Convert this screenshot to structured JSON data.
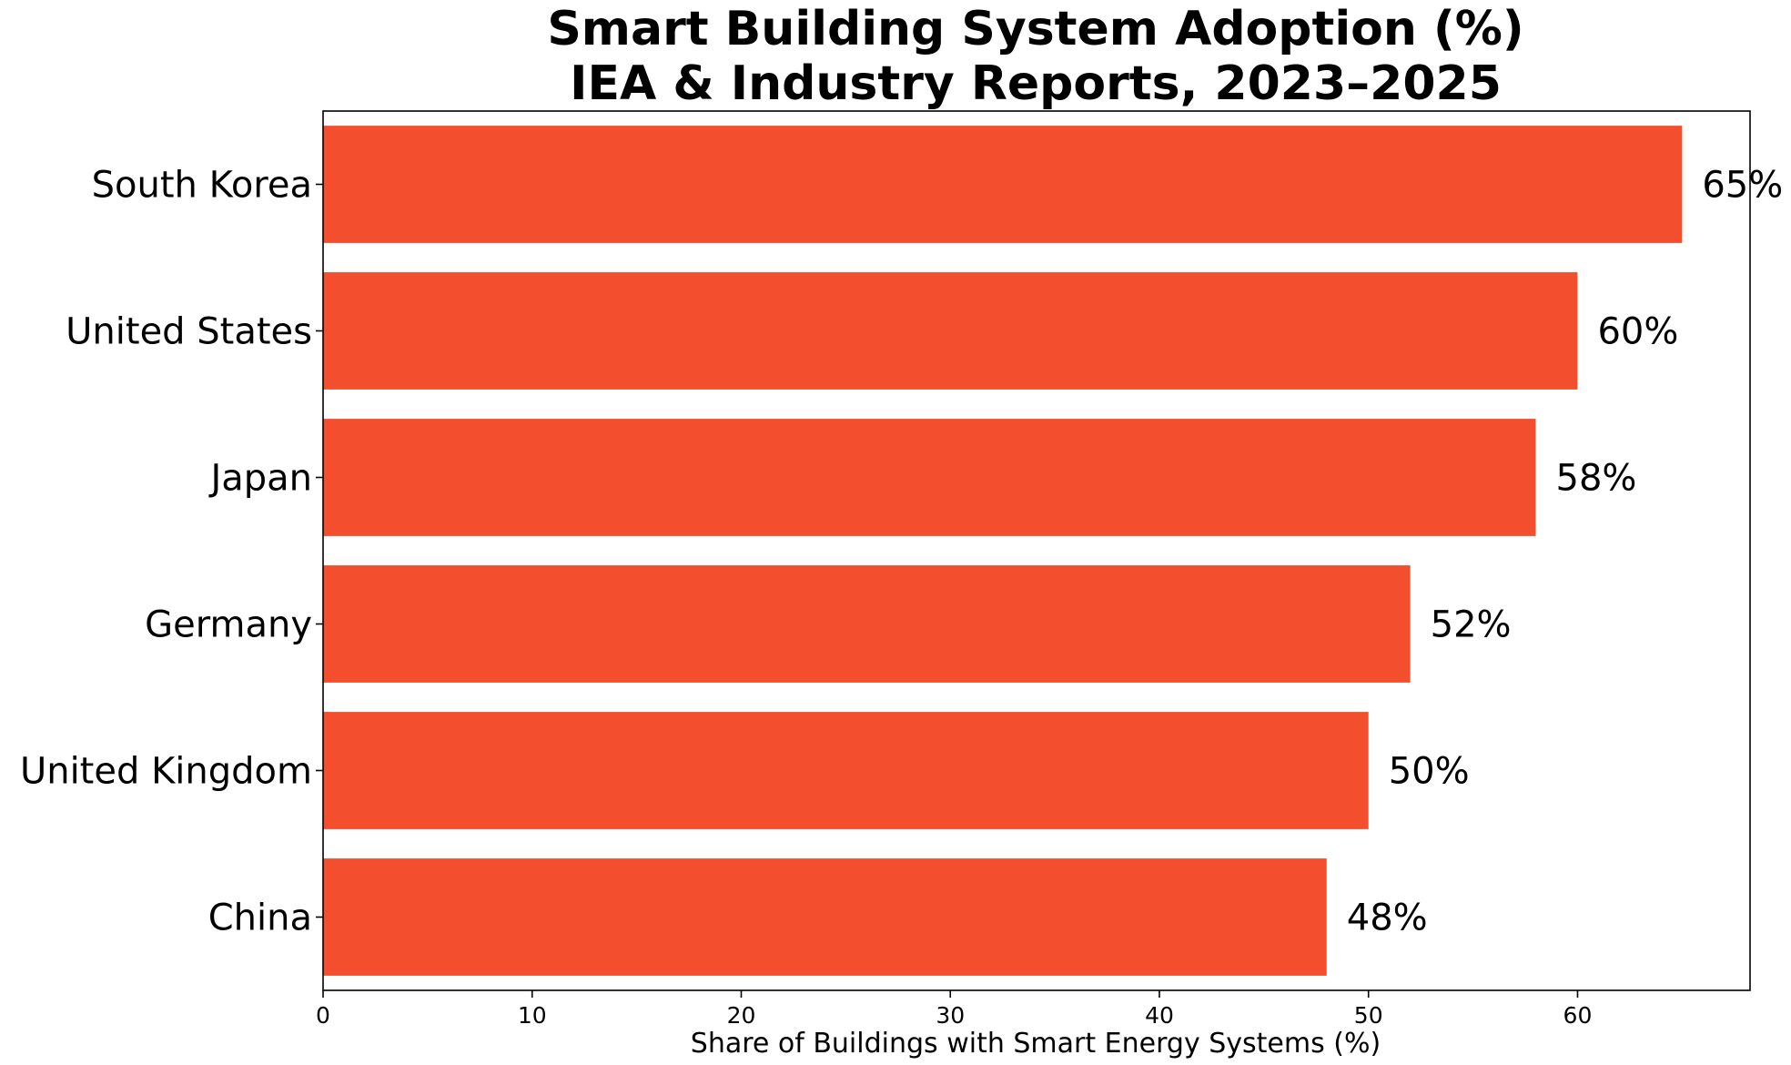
{
  "chart_data": {
    "type": "bar",
    "orientation": "horizontal",
    "title_lines": [
      "Smart Building System Adoption (%)",
      "IEA & Industry Reports, 2023–2025"
    ],
    "xlabel": "Share of Buildings with Smart Energy Systems (%)",
    "ylabel": "",
    "categories": [
      "South Korea",
      "United States",
      "Japan",
      "Germany",
      "United Kingdom",
      "China"
    ],
    "values": [
      65,
      60,
      58,
      52,
      50,
      48
    ],
    "data_labels": [
      "65%",
      "60%",
      "58%",
      "52%",
      "50%",
      "48%"
    ],
    "xlim": [
      0,
      68.25
    ],
    "xticks": [
      0,
      10,
      20,
      30,
      40,
      50,
      60
    ],
    "xtick_labels": [
      "0",
      "10",
      "20",
      "30",
      "40",
      "50",
      "60"
    ],
    "grid": false,
    "bar_color": "#f34f2f"
  }
}
